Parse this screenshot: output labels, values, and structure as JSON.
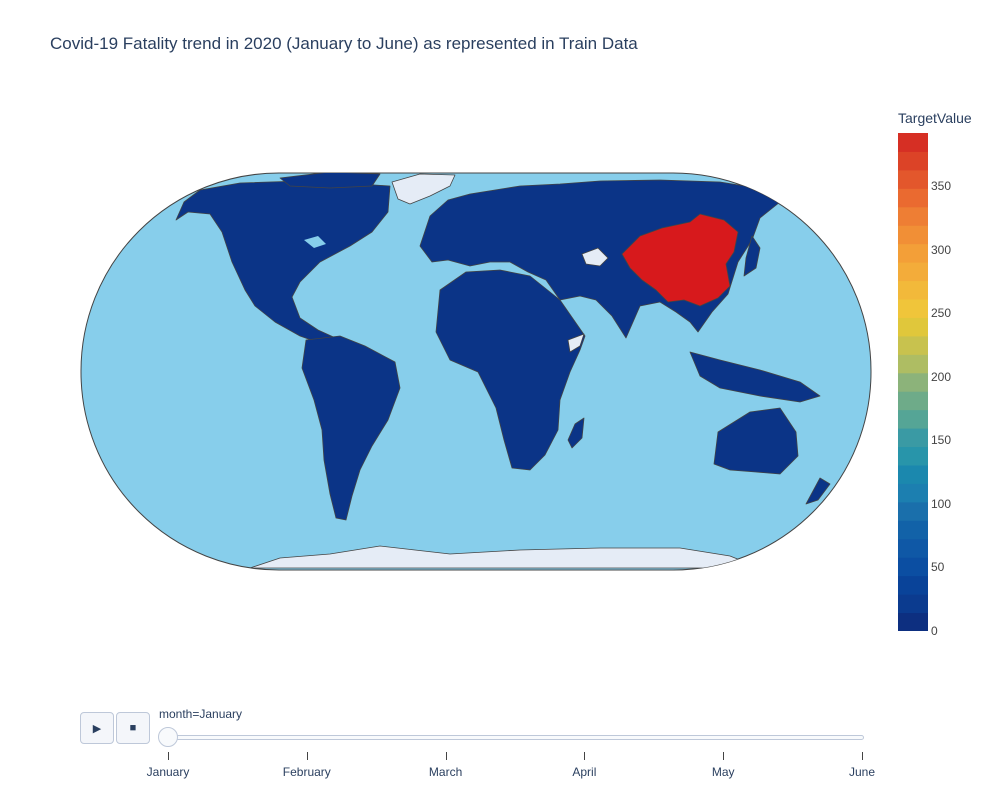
{
  "title": "Covid-19 Fatality trend in 2020 (January to June) as represented in Train Data",
  "map": {
    "projection": "robinson",
    "ocean_color": "#87ceeb",
    "land_color": "#0b3487",
    "border_color": "#444444",
    "no_data_color": "#e5ecf6",
    "highlighted_regions": [
      {
        "name": "China",
        "value": 390,
        "color": "#d7191c"
      }
    ]
  },
  "colorbar": {
    "title": "TargetValue",
    "range": [
      0,
      392
    ],
    "ticks": [
      "0",
      "50",
      "100",
      "150",
      "200",
      "250",
      "300",
      "350"
    ],
    "colors": [
      "#0d2f80",
      "#0b3b8f",
      "#094399",
      "#0b4ea2",
      "#0f58a6",
      "#1262a8",
      "#1a6fab",
      "#1c7fb0",
      "#1b88ae",
      "#2895aa",
      "#3a9aa4",
      "#55a596",
      "#6eab89",
      "#8cb37a",
      "#aebd63",
      "#c8c24e",
      "#e0c73b",
      "#f0c53a",
      "#f2b93a",
      "#f3ac3a",
      "#f39f38",
      "#f18f36",
      "#ee7e34",
      "#ea6a30",
      "#e3572c",
      "#dc4327",
      "#d62f24"
    ]
  },
  "animation": {
    "play_icon": "play-icon",
    "stop_icon": "stop-icon",
    "current_label": "month=January",
    "steps": [
      "January",
      "February",
      "March",
      "April",
      "May",
      "June"
    ],
    "current_index": 0
  }
}
